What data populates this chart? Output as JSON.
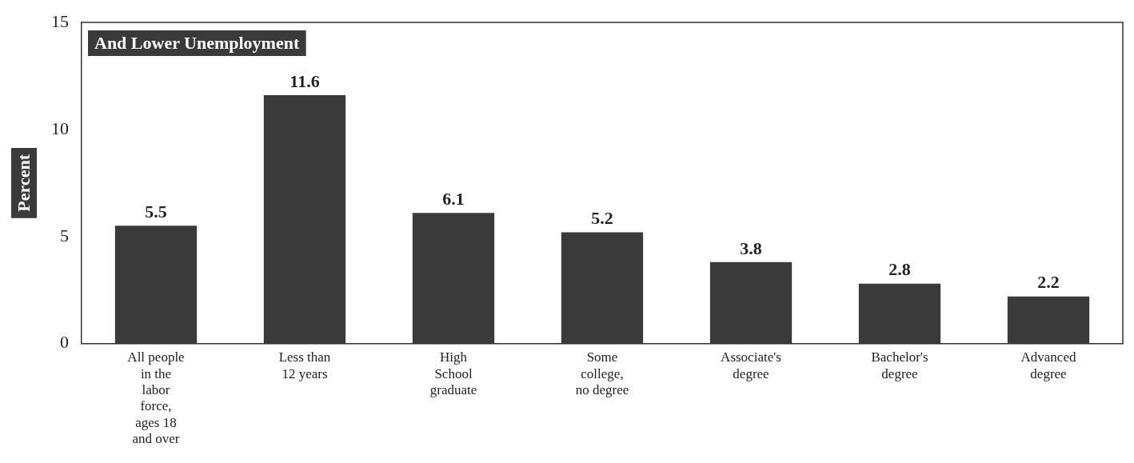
{
  "chart_data": {
    "type": "bar",
    "title": "And Lower Unemployment",
    "ylabel": "Percent",
    "categories": [
      "All people in the labor force, ages 18 and over",
      "Less than 12 years",
      "High School graduate",
      "Some college, no degree",
      "Associate's degree",
      "Bachelor's degree",
      "Advanced degree"
    ],
    "values": [
      5.5,
      11.6,
      6.1,
      5.2,
      3.8,
      2.8,
      2.2
    ],
    "color": "#3a3a3a",
    "ylim": [
      0,
      15
    ],
    "yticks": [
      0,
      5,
      10,
      15
    ],
    "grid": false,
    "data_labels": true
  }
}
